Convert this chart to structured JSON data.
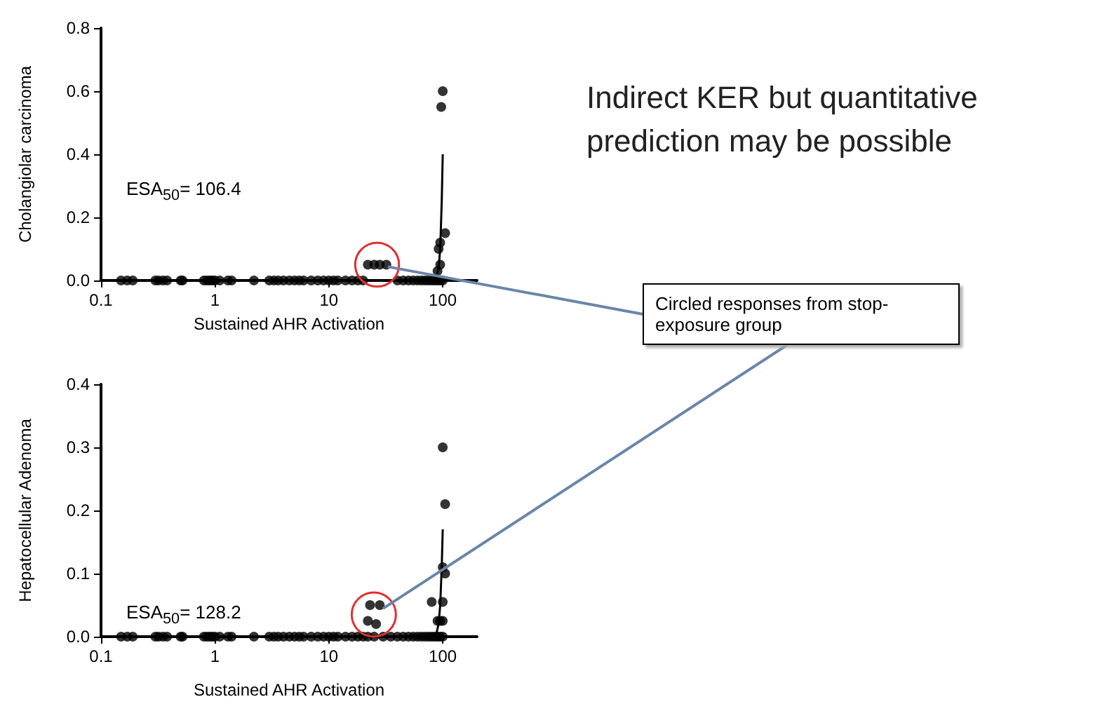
{
  "chart_data": [
    {
      "type": "scatter",
      "xlabel": "Sustained AHR Activation",
      "ylabel": "Cholangiolar carcinoma",
      "log": "x",
      "marker": "circle",
      "xlim": [
        0.1,
        200
      ],
      "xticks": [
        0.1,
        1,
        10,
        100
      ],
      "ylim": [
        0,
        0.8
      ],
      "yticks": [
        {
          "value": 0,
          "label": "0.0"
        },
        {
          "value": 0.2,
          "label": "0.2"
        },
        {
          "value": 0.4,
          "label": "0.4"
        },
        {
          "value": 0.6,
          "label": "0.6"
        },
        {
          "value": 0.8,
          "label": "0.8"
        }
      ],
      "annotations": [
        "ESA$_{50}$= 106.4",
        "Indirect KER but quantitative prediction may be possible",
        "Circled responses from stop-exposure group"
      ],
      "series": [
        {
          "color": "#000000",
          "x": [
            0.15,
            0.17,
            0.19,
            0.3,
            0.32,
            0.35,
            0.38,
            0.5,
            0.52,
            0.8,
            0.85,
            0.9,
            0.95,
            1.0,
            1.1,
            1.3,
            1.4,
            2.2,
            3,
            3.3,
            3.6,
            4,
            4.5,
            5,
            5.5,
            6,
            7,
            8,
            9,
            10,
            11,
            12,
            14,
            16,
            18,
            20,
            40,
            45,
            50,
            55,
            60,
            65,
            70,
            75,
            80,
            85,
            90,
            95,
            100,
            90,
            92,
            95,
            95,
            105,
            97,
            100
          ],
          "values": [
            0,
            0,
            0,
            0,
            0,
            0,
            0,
            0,
            0,
            0,
            0,
            0,
            0,
            0,
            0,
            0,
            0,
            0,
            0,
            0,
            0,
            0,
            0,
            0,
            0,
            0,
            0,
            0,
            0,
            0,
            0,
            0,
            0,
            0,
            0,
            0,
            0,
            0,
            0,
            0,
            0,
            0,
            0,
            0,
            0,
            0,
            0,
            0,
            0,
            0.03,
            0.1,
            0.05,
            0.12,
            0.15,
            0.55,
            0.6
          ]
        },
        {
          "color": "#000000",
          "x": [
            22,
            25,
            28,
            32
          ],
          "values": [
            0.05,
            0.05,
            0.05,
            0.05
          ]
        },
        {
          "type": "line",
          "marker": "none",
          "color": "#000000",
          "x": [
            0.1,
            10,
            50,
            80,
            88,
            92,
            95,
            98,
            100
          ],
          "values": [
            0,
            0,
            0,
            0,
            0.01,
            0.04,
            0.1,
            0.25,
            0.4
          ]
        }
      ]
    },
    {
      "type": "scatter",
      "xlabel": "Sustained AHR Activation",
      "ylabel": "Hepatocellular Adenoma",
      "log": "x",
      "marker": "circle",
      "xlim": [
        0.1,
        200
      ],
      "xticks": [
        0.1,
        1,
        10,
        100
      ],
      "ylim": [
        0,
        0.4
      ],
      "yticks": [
        {
          "value": 0,
          "label": "0.0"
        },
        {
          "value": 0.1,
          "label": "0.1"
        },
        {
          "value": 0.2,
          "label": "0.2"
        },
        {
          "value": 0.3,
          "label": "0.3"
        },
        {
          "value": 0.4,
          "label": "0.4"
        }
      ],
      "annotations": [
        "ESA$_{50}$= 128.2"
      ],
      "series": [
        {
          "color": "#000000",
          "x": [
            0.15,
            0.17,
            0.19,
            0.3,
            0.32,
            0.35,
            0.38,
            0.5,
            0.52,
            0.8,
            0.85,
            0.9,
            0.95,
            1.0,
            1.1,
            1.3,
            1.4,
            2.2,
            3,
            3.3,
            3.6,
            4,
            4.5,
            5,
            5.5,
            6,
            7,
            8,
            9,
            10,
            11,
            12,
            14,
            16,
            18,
            20,
            22,
            25,
            30,
            35,
            40,
            45,
            50,
            55,
            60,
            65,
            70,
            75,
            80,
            85,
            90,
            95,
            100,
            80,
            90,
            95,
            100,
            100,
            105,
            100,
            105,
            100
          ],
          "values": [
            0,
            0,
            0,
            0,
            0,
            0,
            0,
            0,
            0,
            0,
            0,
            0,
            0,
            0,
            0,
            0,
            0,
            0,
            0,
            0,
            0,
            0,
            0,
            0,
            0,
            0,
            0,
            0,
            0,
            0,
            0,
            0,
            0,
            0,
            0,
            0,
            0,
            0,
            0,
            0,
            0,
            0,
            0,
            0,
            0,
            0,
            0,
            0,
            0,
            0,
            0,
            0,
            0,
            0.055,
            0.025,
            0.025,
            0.025,
            0.055,
            0.1,
            0.11,
            0.21,
            0.3
          ]
        },
        {
          "color": "#000000",
          "x": [
            22,
            26,
            23,
            28
          ],
          "values": [
            0.025,
            0.02,
            0.05,
            0.05
          ]
        },
        {
          "type": "line",
          "marker": "none",
          "color": "#000000",
          "x": [
            0.1,
            10,
            50,
            80,
            88,
            92,
            95,
            98,
            100
          ],
          "values": [
            0,
            0,
            0,
            0,
            0.005,
            0.02,
            0.05,
            0.11,
            0.17
          ]
        }
      ]
    }
  ]
}
